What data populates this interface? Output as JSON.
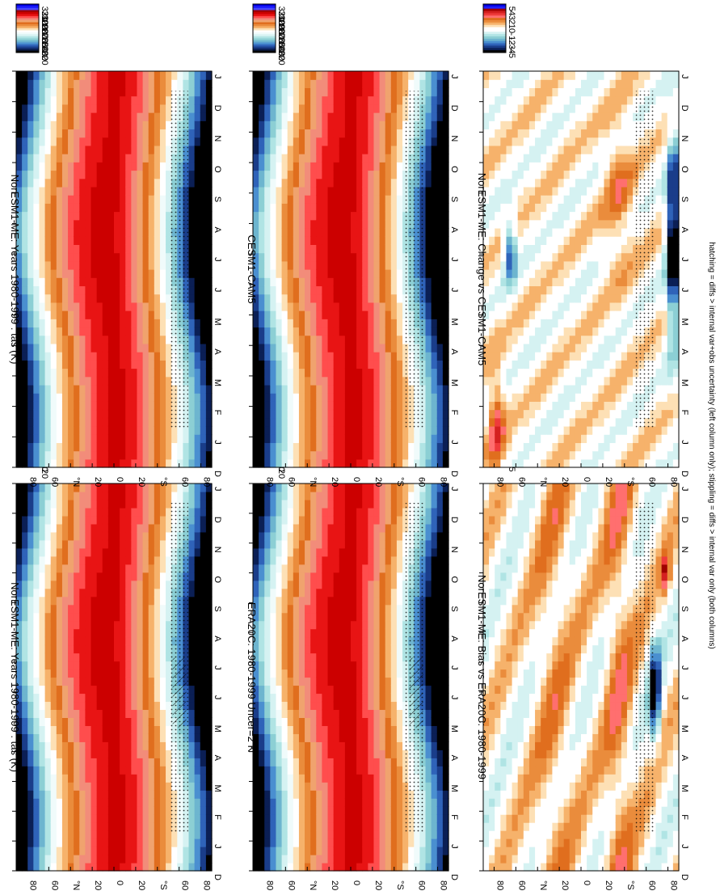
{
  "figure": {
    "orientation": "rotated 90 degrees clockwise",
    "footnote": "hatching = diffs > internal var+obs uncertainty (left column only); stippling = diffs > internal var only (both columns)"
  },
  "colorbars": {
    "absolute": {
      "labels": [
        "320",
        "310",
        "300",
        "290",
        "280",
        "270",
        "260",
        "250",
        "240",
        "230",
        "220"
      ],
      "colors": [
        "#0000e0",
        "#1f1fff",
        "#4747ff",
        "#a00000",
        "#cc0000",
        "#e81414",
        "#ff4d4d",
        "#f28c7a",
        "#f0a36e",
        "#e06e1e",
        "#ea8c3c",
        "#f6b26b",
        "#fde0b5",
        "#ffffff",
        "#f0fbfb",
        "#d5f2f2",
        "#b0e4e4",
        "#8ccfd4",
        "#6db5cf",
        "#4a8fd0",
        "#2f63b9",
        "#1a3d8a",
        "#0b1f55",
        "#000000"
      ]
    },
    "difference": {
      "labels": [
        "5",
        "4",
        "3",
        "2",
        "1",
        "0",
        "-1",
        "-2",
        "-3",
        "-4",
        "-5"
      ],
      "colors": [
        "#0000e0",
        "#1f1fff",
        "#a00000",
        "#d42020",
        "#ef3b3b",
        "#ff6f6f",
        "#e06e1e",
        "#ea8c3c",
        "#f6b26b",
        "#fde0b5",
        "#ffffff",
        "#ffffff",
        "#d5f2f2",
        "#b0e4e4",
        "#8ccfd4",
        "#6db5cf",
        "#4a8fd0",
        "#2f63b9",
        "#1a3d8a",
        "#0b1f55",
        "#000000"
      ]
    }
  },
  "chart_data": [
    {
      "id": "p1",
      "type": "heatmap",
      "title": "NorESM1-ME: Years 1980-1999 : tas (K)",
      "x": [
        "D",
        "J",
        "F",
        "M",
        "A",
        "M",
        "J",
        "J",
        "A",
        "S",
        "O",
        "N",
        "D",
        "J"
      ],
      "y": [
        "80",
        "60",
        "°N",
        "20",
        "0",
        "20",
        "°S",
        "60",
        "80"
      ],
      "variable": "tas",
      "units": "K",
      "colorbar": "absolute",
      "value_range": [
        220,
        320
      ],
      "hatching": true
    },
    {
      "id": "p2",
      "type": "heatmap",
      "title": "NorESM1-ME: Years 1980-1999 : tas (K)",
      "x": [
        "D",
        "J",
        "F",
        "M",
        "A",
        "M",
        "J",
        "J",
        "A",
        "S",
        "O",
        "N",
        "D",
        "J"
      ],
      "y": [
        "80",
        "60",
        "°N",
        "20",
        "0",
        "20",
        "°S",
        "60",
        "80"
      ],
      "variable": "tas",
      "units": "K",
      "colorbar": "absolute",
      "value_range": [
        220,
        320
      ],
      "hatching": false
    },
    {
      "id": "p3",
      "type": "heatmap",
      "title": "ERA20C: 1980-1999 Uncer=2 K",
      "x": [
        "D",
        "J",
        "F",
        "M",
        "A",
        "M",
        "J",
        "J",
        "A",
        "S",
        "O",
        "N",
        "D",
        "J"
      ],
      "y": [
        "80",
        "60",
        "°N",
        "20",
        "0",
        "20",
        "°S",
        "60",
        "80"
      ],
      "variable": "tas",
      "units": "K",
      "colorbar": "absolute",
      "value_range": [
        220,
        320
      ],
      "hatching": true
    },
    {
      "id": "p4",
      "type": "heatmap",
      "title": "CESM1-CAM5",
      "x": [
        "D",
        "J",
        "F",
        "M",
        "A",
        "M",
        "J",
        "J",
        "A",
        "S",
        "O",
        "N",
        "D",
        "J"
      ],
      "y": [
        "80",
        "60",
        "°N",
        "20",
        "0",
        "20",
        "°S",
        "60",
        "80"
      ],
      "variable": "tas",
      "units": "K",
      "colorbar": "absolute",
      "value_range": [
        220,
        320
      ],
      "hatching": false
    },
    {
      "id": "p5",
      "type": "heatmap",
      "title": "NorESM1-ME: Bias vs ERA20C: 1980-1999",
      "x": [
        "D",
        "J",
        "F",
        "M",
        "A",
        "M",
        "J",
        "J",
        "A",
        "S",
        "O",
        "N",
        "D",
        "J"
      ],
      "y": [
        "80",
        "60",
        "°N",
        "20",
        "0",
        "20",
        "°S",
        "60",
        "80"
      ],
      "variable": "tas bias",
      "units": "K",
      "colorbar": "difference",
      "value_range": [
        -5,
        5
      ]
    },
    {
      "id": "p6",
      "type": "heatmap",
      "title": "NorESM1-ME: Change vs CESM1-CAM5",
      "x": [
        "D",
        "J",
        "F",
        "M",
        "A",
        "M",
        "J",
        "J",
        "A",
        "S",
        "O",
        "N",
        "D",
        "J"
      ],
      "y": [
        "80",
        "60",
        "°N",
        "20",
        "0",
        "20",
        "°S",
        "60",
        "80"
      ],
      "variable": "tas difference",
      "units": "K",
      "colorbar": "difference",
      "value_range": [
        -5,
        5
      ]
    }
  ]
}
